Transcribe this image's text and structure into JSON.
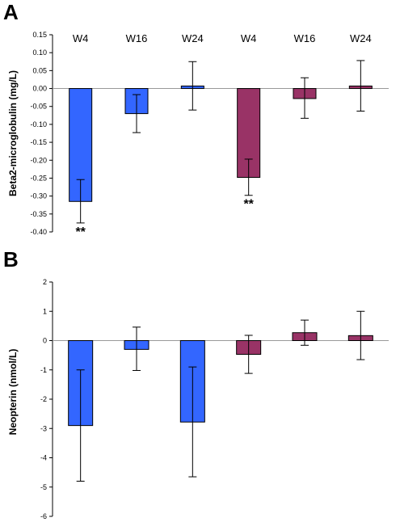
{
  "colors": {
    "blue": "#3366ff",
    "purple": "#993366",
    "axis": "#000000",
    "zero_line": "#999999"
  },
  "chart_data": [
    {
      "type": "bar",
      "panel": "A",
      "ylabel": "Beta2-microglobulin (mg/L)",
      "ylim": [
        -0.4,
        0.15
      ],
      "yticks": [
        "0.15",
        "0.10",
        "0.05",
        "0.00",
        "-0.05",
        "-0.10",
        "-0.15",
        "-0.20",
        "-0.25",
        "-0.30",
        "-0.35",
        "-0.40"
      ],
      "tick_values": [
        0.15,
        0.1,
        0.05,
        0.0,
        -0.05,
        -0.1,
        -0.15,
        -0.2,
        -0.25,
        -0.3,
        -0.35,
        -0.4
      ],
      "categories": [
        "W4",
        "W16",
        "W24",
        "W4",
        "W16",
        "W24"
      ],
      "values": [
        -0.315,
        -0.07,
        0.007,
        -0.248,
        -0.028,
        0.007
      ],
      "err_low": [
        -0.375,
        -0.123,
        -0.06,
        -0.298,
        -0.083,
        -0.063
      ],
      "err_high": [
        -0.254,
        -0.017,
        0.075,
        -0.197,
        0.03,
        0.078
      ],
      "bar_colors": [
        "blue",
        "blue",
        "blue",
        "purple",
        "purple",
        "purple"
      ],
      "annotations": [
        "**",
        "",
        "",
        "**",
        "",
        ""
      ],
      "grid": false
    },
    {
      "type": "bar",
      "panel": "B",
      "ylabel": "Neopterin (nmol/L)",
      "ylim": [
        -6,
        2
      ],
      "yticks": [
        "2",
        "1",
        "0",
        "-1",
        "-2",
        "-3",
        "-4",
        "-5",
        "-6"
      ],
      "tick_values": [
        2,
        1,
        0,
        -1,
        -2,
        -3,
        -4,
        -5,
        -6
      ],
      "categories": [
        "",
        "",
        "",
        "",
        "",
        ""
      ],
      "values": [
        -2.9,
        -0.3,
        -2.78,
        -0.47,
        0.27,
        0.17
      ],
      "err_low": [
        -4.8,
        -1.02,
        -4.65,
        -1.12,
        -0.16,
        -0.65
      ],
      "err_high": [
        -1.0,
        0.46,
        -0.9,
        0.18,
        0.7,
        1.0
      ],
      "bar_colors": [
        "blue",
        "blue",
        "blue",
        "purple",
        "purple",
        "purple"
      ],
      "annotations": [
        "",
        "",
        "",
        "",
        "",
        ""
      ],
      "grid": false
    }
  ]
}
